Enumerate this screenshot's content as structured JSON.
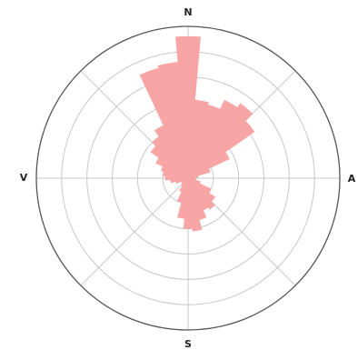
{
  "chart_data": {
    "type": "rose",
    "title": "",
    "direction_labels": {
      "north": "N",
      "east": "A",
      "south": "S",
      "west": "V"
    },
    "sector_width_deg": 10,
    "radial_max": 6,
    "ring_count": 6,
    "grid": true,
    "spoke_angles_deg": [
      0,
      45,
      90,
      135,
      180,
      225,
      270,
      315
    ],
    "sectors": [
      {
        "direction_deg": 0,
        "value": 5.6
      },
      {
        "direction_deg": 10,
        "value": 3.1
      },
      {
        "direction_deg": 20,
        "value": 3.0
      },
      {
        "direction_deg": 30,
        "value": 3.4
      },
      {
        "direction_deg": 40,
        "value": 3.6
      },
      {
        "direction_deg": 50,
        "value": 3.2
      },
      {
        "direction_deg": 60,
        "value": 1.8
      },
      {
        "direction_deg": 70,
        "value": 0.9
      },
      {
        "direction_deg": 80,
        "value": 0.4
      },
      {
        "direction_deg": 90,
        "value": 0.3
      },
      {
        "direction_deg": 100,
        "value": 0.3
      },
      {
        "direction_deg": 110,
        "value": 0.5
      },
      {
        "direction_deg": 120,
        "value": 1.0
      },
      {
        "direction_deg": 130,
        "value": 1.3
      },
      {
        "direction_deg": 140,
        "value": 1.5
      },
      {
        "direction_deg": 150,
        "value": 1.4
      },
      {
        "direction_deg": 160,
        "value": 1.7
      },
      {
        "direction_deg": 170,
        "value": 2.1
      },
      {
        "direction_deg": 180,
        "value": 2.0
      },
      {
        "direction_deg": 190,
        "value": 1.6
      },
      {
        "direction_deg": 200,
        "value": 1.0
      },
      {
        "direction_deg": 210,
        "value": 0.6
      },
      {
        "direction_deg": 220,
        "value": 0.4
      },
      {
        "direction_deg": 230,
        "value": 0.3
      },
      {
        "direction_deg": 240,
        "value": 0.3
      },
      {
        "direction_deg": 250,
        "value": 0.5
      },
      {
        "direction_deg": 260,
        "value": 0.7
      },
      {
        "direction_deg": 270,
        "value": 0.9
      },
      {
        "direction_deg": 280,
        "value": 1.0
      },
      {
        "direction_deg": 290,
        "value": 1.1
      },
      {
        "direction_deg": 300,
        "value": 1.4
      },
      {
        "direction_deg": 310,
        "value": 1.8
      },
      {
        "direction_deg": 320,
        "value": 2.0
      },
      {
        "direction_deg": 330,
        "value": 2.3
      },
      {
        "direction_deg": 340,
        "value": 4.5
      },
      {
        "direction_deg": 350,
        "value": 4.6
      }
    ],
    "colors": {
      "petal_fill": "#f8a5a5",
      "grid_line": "#c8c8c8",
      "outer_circle": "#555555",
      "label": "#222222"
    }
  }
}
